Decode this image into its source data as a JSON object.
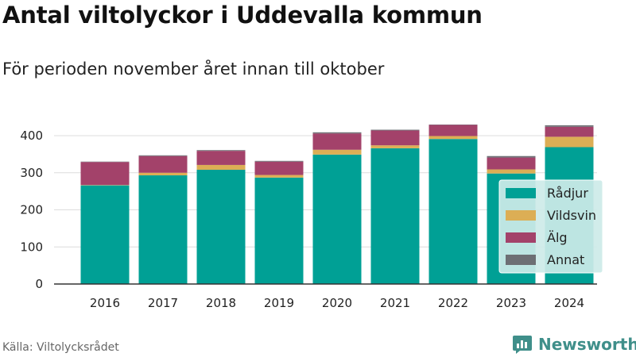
{
  "title": "Antal viltolyckor i Uddevalla kommun",
  "subtitle": "För perioden november året innan till oktober",
  "source": "Källa: Viltolycksrådet",
  "brand": "Newsworthy",
  "colors": {
    "Rådjur": "#00a095",
    "Vildsvin": "#dcae55",
    "Älg": "#a3426a",
    "Annat": "#6d6f74",
    "brand": "#3f8f8a",
    "legend_bg": "#cdeae8"
  },
  "chart_data": {
    "type": "bar",
    "stacked": true,
    "title": "Antal viltolyckor i Uddevalla kommun",
    "subtitle": "För perioden november året innan till oktober",
    "xlabel": "",
    "ylabel": "",
    "categories": [
      "2016",
      "2017",
      "2018",
      "2019",
      "2020",
      "2021",
      "2022",
      "2023",
      "2024"
    ],
    "ylim": [
      0,
      440
    ],
    "yticks": [
      0,
      100,
      200,
      300,
      400
    ],
    "grid": true,
    "legend_position": "right",
    "series": [
      {
        "name": "Rådjur",
        "values": [
          266,
          293,
          308,
          287,
          349,
          366,
          391,
          298,
          369
        ]
      },
      {
        "name": "Vildsvin",
        "values": [
          1,
          7,
          13,
          7,
          13,
          8,
          8,
          11,
          28
        ]
      },
      {
        "name": "Älg",
        "values": [
          62,
          45,
          38,
          36,
          44,
          40,
          30,
          32,
          27
        ]
      },
      {
        "name": "Annat",
        "values": [
          1,
          2,
          2,
          2,
          3,
          2,
          1,
          4,
          4
        ]
      }
    ]
  }
}
